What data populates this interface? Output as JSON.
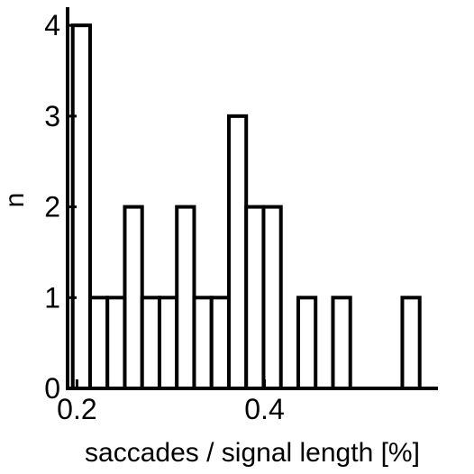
{
  "chart_data": {
    "type": "bar",
    "subtype": "histogram",
    "xlabel": "saccades / signal length [%]",
    "ylabel": "n",
    "xlim": [
      0.19,
      0.585
    ],
    "ylim": [
      0,
      4.2
    ],
    "x_ticks": [
      {
        "value": 0.2,
        "label": "0.2"
      },
      {
        "value": 0.4,
        "label": "0.4"
      }
    ],
    "y_ticks": [
      {
        "value": 0,
        "label": "0"
      },
      {
        "value": 1,
        "label": "1"
      },
      {
        "value": 2,
        "label": "2"
      },
      {
        "value": 3,
        "label": "3"
      },
      {
        "value": 4,
        "label": "4"
      }
    ],
    "bin_width": 0.0185,
    "bins": [
      {
        "x0": 0.1955,
        "count": 4
      },
      {
        "x0": 0.214,
        "count": 1
      },
      {
        "x0": 0.2325,
        "count": 1
      },
      {
        "x0": 0.251,
        "count": 2
      },
      {
        "x0": 0.2695,
        "count": 1
      },
      {
        "x0": 0.288,
        "count": 1
      },
      {
        "x0": 0.3065,
        "count": 2
      },
      {
        "x0": 0.325,
        "count": 1
      },
      {
        "x0": 0.3435,
        "count": 1
      },
      {
        "x0": 0.362,
        "count": 3
      },
      {
        "x0": 0.3805,
        "count": 2
      },
      {
        "x0": 0.399,
        "count": 2
      },
      {
        "x0": 0.4175,
        "count": 0
      },
      {
        "x0": 0.436,
        "count": 1
      },
      {
        "x0": 0.4545,
        "count": 0
      },
      {
        "x0": 0.473,
        "count": 1
      },
      {
        "x0": 0.4915,
        "count": 0
      },
      {
        "x0": 0.51,
        "count": 0
      },
      {
        "x0": 0.5285,
        "count": 0
      },
      {
        "x0": 0.547,
        "count": 1
      }
    ],
    "bar_fill": "#ffffff",
    "bar_stroke": "#000000",
    "grid": false,
    "legend": "none"
  }
}
